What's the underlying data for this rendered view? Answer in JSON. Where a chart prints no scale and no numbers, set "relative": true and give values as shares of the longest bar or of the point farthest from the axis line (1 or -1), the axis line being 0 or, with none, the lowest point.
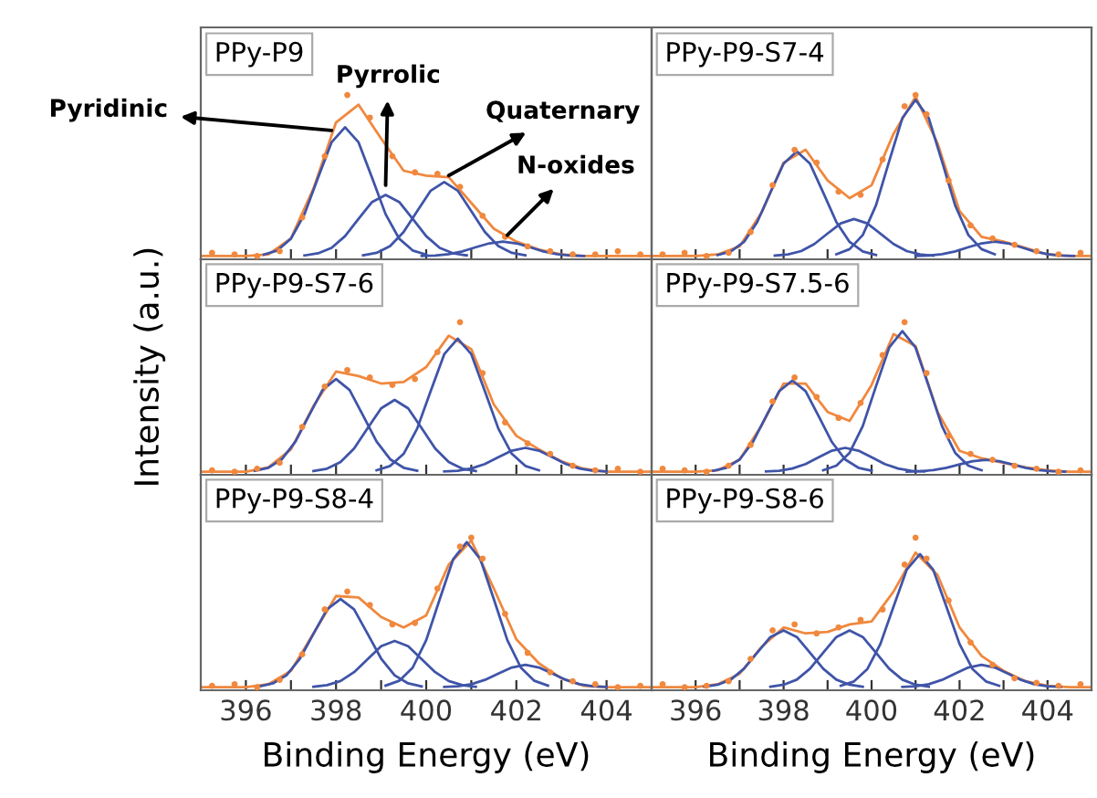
{
  "chart_data": [
    {
      "type": "line",
      "title": "PPy-P9",
      "relative": true,
      "xlim": [
        395,
        405
      ],
      "xticks": [
        396,
        {
          "value": 397,
          "label": null
        },
        398,
        {
          "value": 399,
          "label": null
        },
        400,
        {
          "value": 401,
          "label": null
        },
        402,
        {
          "value": 403,
          "label": null
        },
        404
      ],
      "tick_labels": false,
      "annotations": [
        {
          "text": "Pyridinic",
          "x": 397.9,
          "y": 0.78
        },
        {
          "text": "Pyrrolic",
          "x": 399.1,
          "y": 0.44
        },
        {
          "text": "Quaternary",
          "x": 400.5,
          "y": 0.5
        },
        {
          "text": "N-oxides",
          "x": 401.8,
          "y": 0.13
        }
      ],
      "series": [
        {
          "type": "scatter",
          "marker": "circle",
          "color": "#f0883e",
          "x": [
            395.25,
            395.75,
            396.25,
            396.75,
            397.25,
            397.75,
            398.25,
            398.75,
            399.25,
            399.75,
            400.25,
            400.75,
            401.25,
            401.75,
            402.25,
            402.75,
            403.25,
            403.75,
            404.25,
            404.75
          ],
          "values": [
            0.02,
            0.01,
            0.0,
            0.03,
            0.24,
            0.62,
            1.0,
            0.86,
            0.62,
            0.52,
            0.51,
            0.43,
            0.25,
            0.12,
            0.06,
            0.03,
            0.01,
            0.01,
            0.03,
            0.01
          ]
        },
        {
          "color": "#f0883e",
          "x": [
            395,
            395.5,
            396,
            396.5,
            397,
            397.5,
            398,
            398.5,
            399,
            399.5,
            400,
            400.5,
            401,
            401.5,
            402,
            402.5,
            403,
            403.5,
            404,
            404.5,
            405
          ],
          "values": [
            0,
            0,
            0,
            0.01,
            0.11,
            0.42,
            0.83,
            0.94,
            0.73,
            0.53,
            0.5,
            0.49,
            0.33,
            0.17,
            0.09,
            0.04,
            0.01,
            0,
            0,
            0,
            0
          ]
        },
        {
          "color": "#3f54a8",
          "x": [
            396.4,
            396.7,
            397.0,
            397.3,
            397.6,
            397.9,
            398.2,
            398.5,
            398.8,
            399.1,
            399.4,
            399.7,
            400.0
          ],
          "values": [
            0.009,
            0.035,
            0.108,
            0.26,
            0.486,
            0.706,
            0.8,
            0.706,
            0.486,
            0.26,
            0.108,
            0.035,
            0.009
          ]
        },
        {
          "color": "#3f54a8",
          "x": [
            397.3,
            397.6,
            397.9,
            398.2,
            398.5,
            398.8,
            399.1,
            399.4,
            399.7,
            400.0,
            400.3,
            400.6,
            400.9
          ],
          "values": [
            0.004,
            0.017,
            0.051,
            0.124,
            0.231,
            0.336,
            0.38,
            0.336,
            0.231,
            0.124,
            0.051,
            0.017,
            0.004
          ]
        },
        {
          "color": "#3f54a8",
          "x": [
            398.6,
            398.9,
            399.2,
            399.5,
            399.8,
            400.1,
            400.4,
            400.7,
            401.0,
            401.3,
            401.6,
            401.9,
            402.2
          ],
          "values": [
            0.005,
            0.02,
            0.062,
            0.15,
            0.279,
            0.406,
            0.46,
            0.406,
            0.279,
            0.15,
            0.062,
            0.02,
            0.005
          ]
        },
        {
          "color": "#3f54a8",
          "x": [
            399.9,
            400.2,
            400.5,
            400.8,
            401.1,
            401.4,
            401.7,
            402.0,
            402.3,
            402.6,
            402.9,
            403.2,
            403.5
          ],
          "values": [
            0.001,
            0.004,
            0.012,
            0.029,
            0.055,
            0.079,
            0.09,
            0.079,
            0.055,
            0.029,
            0.012,
            0.004,
            0.001
          ]
        }
      ]
    },
    {
      "type": "line",
      "title": "PPy-P9-S7-4",
      "relative": true,
      "xlim": [
        395,
        405
      ],
      "xticks": [
        396,
        {
          "value": 397,
          "label": null
        },
        398,
        {
          "value": 399,
          "label": null
        },
        400,
        {
          "value": 401,
          "label": null
        },
        402,
        {
          "value": 403,
          "label": null
        },
        404
      ],
      "tick_labels": false,
      "series": [
        {
          "type": "scatter",
          "marker": "circle",
          "color": "#f0883e",
          "x": [
            395.25,
            395.75,
            396.25,
            396.75,
            397.25,
            397.75,
            398.25,
            398.75,
            399.25,
            399.75,
            400.25,
            400.75,
            401.0,
            401.25,
            401.75,
            402.25,
            402.75,
            403.25,
            403.75,
            404.25,
            404.75
          ],
          "values": [
            0.01,
            0.02,
            0.0,
            0.02,
            0.15,
            0.44,
            0.66,
            0.58,
            0.4,
            0.38,
            0.6,
            0.93,
            1.0,
            0.88,
            0.47,
            0.19,
            0.11,
            0.07,
            0.03,
            0.01,
            0.02
          ]
        },
        {
          "color": "#f0883e",
          "x": [
            395,
            395.5,
            396,
            396.5,
            397,
            397.5,
            398,
            398.5,
            399,
            399.5,
            400,
            400.5,
            401,
            401.5,
            402,
            402.5,
            403,
            403.5,
            404,
            404.5,
            405
          ],
          "values": [
            0,
            0,
            0,
            0.01,
            0.06,
            0.27,
            0.58,
            0.66,
            0.47,
            0.36,
            0.44,
            0.76,
            0.99,
            0.7,
            0.28,
            0.12,
            0.09,
            0.05,
            0.01,
            0,
            0
          ]
        },
        {
          "color": "#3f54a8",
          "x": [
            396.5,
            396.8,
            397.1,
            397.4,
            397.7,
            398.0,
            398.3,
            398.6,
            398.9,
            399.2,
            399.5,
            399.8,
            400.1
          ],
          "values": [
            0.007,
            0.029,
            0.088,
            0.211,
            0.395,
            0.574,
            0.65,
            0.574,
            0.395,
            0.211,
            0.088,
            0.029,
            0.007
          ]
        },
        {
          "color": "#3f54a8",
          "x": [
            397.8,
            398.1,
            398.4,
            398.7,
            399.0,
            399.3,
            399.6,
            399.9,
            400.2,
            400.5,
            400.8,
            401.1,
            401.4
          ],
          "values": [
            0.003,
            0.01,
            0.031,
            0.075,
            0.14,
            0.203,
            0.23,
            0.203,
            0.14,
            0.075,
            0.031,
            0.01,
            0.003
          ]
        },
        {
          "color": "#3f54a8",
          "x": [
            399.2,
            399.5,
            399.8,
            400.1,
            400.4,
            400.7,
            401.0,
            401.3,
            401.6,
            401.9,
            402.2,
            402.5,
            402.8
          ],
          "values": [
            0.011,
            0.043,
            0.131,
            0.315,
            0.589,
            0.857,
            0.97,
            0.857,
            0.589,
            0.315,
            0.131,
            0.043,
            0.011
          ]
        },
        {
          "color": "#3f54a8",
          "x": [
            401.0,
            401.3,
            401.6,
            401.9,
            402.2,
            402.5,
            402.8,
            403.1,
            403.4,
            403.7,
            404.0,
            404.3,
            404.6
          ],
          "values": [
            0.001,
            0.004,
            0.012,
            0.029,
            0.055,
            0.079,
            0.09,
            0.079,
            0.055,
            0.029,
            0.012,
            0.004,
            0.001
          ]
        }
      ]
    },
    {
      "type": "line",
      "title": "PPy-P9-S7-6",
      "relative": true,
      "ylabel": "Intensity (a.u.)",
      "xlim": [
        395,
        405
      ],
      "xticks": [
        396,
        {
          "value": 397,
          "label": null
        },
        398,
        {
          "value": 399,
          "label": null
        },
        400,
        {
          "value": 401,
          "label": null
        },
        402,
        {
          "value": 403,
          "label": null
        },
        404
      ],
      "tick_labels": false,
      "series": [
        {
          "type": "scatter",
          "marker": "circle",
          "color": "#f0883e",
          "x": [
            395.25,
            395.75,
            396.25,
            396.75,
            397.25,
            397.75,
            398.25,
            398.75,
            399.25,
            399.75,
            400.25,
            400.75,
            401.25,
            401.75,
            402.25,
            402.75,
            403.25,
            403.75,
            404.25,
            404.75
          ],
          "values": [
            0.01,
            0.0,
            0.02,
            0.06,
            0.3,
            0.57,
            0.68,
            0.63,
            0.58,
            0.62,
            0.8,
            1.0,
            0.66,
            0.33,
            0.19,
            0.12,
            0.04,
            0.01,
            0.02,
            0.0
          ]
        },
        {
          "color": "#f0883e",
          "x": [
            395,
            395.5,
            396,
            396.5,
            397,
            397.5,
            398,
            398.5,
            399,
            399.5,
            400,
            400.5,
            401,
            401.5,
            402,
            402.5,
            403,
            403.5,
            404,
            404.5,
            405
          ],
          "values": [
            0,
            0,
            0,
            0.03,
            0.15,
            0.44,
            0.67,
            0.64,
            0.59,
            0.6,
            0.7,
            0.91,
            0.82,
            0.45,
            0.24,
            0.15,
            0.07,
            0.02,
            0,
            0,
            0
          ]
        },
        {
          "color": "#3f54a8",
          "x": [
            396.2,
            396.5,
            396.8,
            397.1,
            397.4,
            397.7,
            398.0,
            398.3,
            398.6,
            398.9,
            399.2,
            399.5,
            399.8
          ],
          "values": [
            0.007,
            0.027,
            0.084,
            0.202,
            0.376,
            0.547,
            0.62,
            0.547,
            0.376,
            0.202,
            0.084,
            0.027,
            0.007
          ]
        },
        {
          "color": "#3f54a8",
          "x": [
            397.5,
            397.8,
            398.1,
            398.4,
            398.7,
            399.0,
            399.3,
            399.6,
            399.9,
            400.2,
            400.5,
            400.8,
            401.1
          ],
          "values": [
            0.005,
            0.021,
            0.065,
            0.156,
            0.291,
            0.424,
            0.48,
            0.424,
            0.291,
            0.156,
            0.065,
            0.021,
            0.005
          ]
        },
        {
          "color": "#3f54a8",
          "x": [
            398.9,
            399.2,
            399.5,
            399.8,
            400.1,
            400.4,
            400.7,
            401.0,
            401.3,
            401.6,
            401.9,
            402.2,
            402.5
          ],
          "values": [
            0.01,
            0.039,
            0.12,
            0.289,
            0.54,
            0.786,
            0.89,
            0.786,
            0.54,
            0.289,
            0.12,
            0.039,
            0.01
          ]
        },
        {
          "color": "#3f54a8",
          "x": [
            400.4,
            400.7,
            401.0,
            401.3,
            401.6,
            401.9,
            402.2,
            402.5,
            402.8,
            403.1,
            403.4,
            403.7,
            404.0
          ],
          "values": [
            0.002,
            0.007,
            0.022,
            0.052,
            0.097,
            0.141,
            0.16,
            0.141,
            0.097,
            0.052,
            0.022,
            0.007,
            0.002
          ]
        }
      ]
    },
    {
      "type": "line",
      "title": "PPy-P9-S7.5-6",
      "relative": true,
      "xlim": [
        395,
        405
      ],
      "xticks": [
        396,
        {
          "value": 397,
          "label": null
        },
        398,
        {
          "value": 399,
          "label": null
        },
        400,
        {
          "value": 401,
          "label": null
        },
        402,
        {
          "value": 403,
          "label": null
        },
        404
      ],
      "tick_labels": false,
      "series": [
        {
          "type": "scatter",
          "marker": "circle",
          "color": "#f0883e",
          "x": [
            395.25,
            395.75,
            396.25,
            396.75,
            397.25,
            397.75,
            398.25,
            398.75,
            399.25,
            399.75,
            400.25,
            400.75,
            401.25,
            401.75,
            402.25,
            402.75,
            403.25,
            403.75,
            404.25,
            404.75
          ],
          "values": [
            0.02,
            0.01,
            0.0,
            0.04,
            0.18,
            0.47,
            0.63,
            0.5,
            0.36,
            0.46,
            0.78,
            1.0,
            0.66,
            0.24,
            0.12,
            0.08,
            0.04,
            0.02,
            0.0,
            0.01
          ]
        },
        {
          "color": "#f0883e",
          "x": [
            395,
            395.5,
            396,
            396.5,
            397,
            397.5,
            398,
            398.5,
            399,
            399.5,
            400,
            400.5,
            401,
            401.5,
            402,
            402.5,
            403,
            403.5,
            404,
            404.5,
            405
          ],
          "values": [
            0,
            0,
            0,
            0.01,
            0.08,
            0.31,
            0.59,
            0.59,
            0.4,
            0.34,
            0.58,
            0.92,
            0.84,
            0.4,
            0.14,
            0.09,
            0.06,
            0.03,
            0.01,
            0,
            0
          ]
        },
        {
          "color": "#3f54a8",
          "x": [
            396.4,
            396.7,
            397.0,
            397.3,
            397.6,
            397.9,
            398.2,
            398.5,
            398.8,
            399.1,
            399.4,
            399.7,
            400.0
          ],
          "values": [
            0.007,
            0.027,
            0.082,
            0.198,
            0.37,
            0.539,
            0.61,
            0.539,
            0.37,
            0.198,
            0.082,
            0.027,
            0.007
          ]
        },
        {
          "color": "#3f54a8",
          "x": [
            397.6,
            397.9,
            398.2,
            398.5,
            398.8,
            399.1,
            399.4,
            399.7,
            400.0,
            400.3,
            400.6,
            400.9,
            401.2
          ],
          "values": [
            0.002,
            0.007,
            0.022,
            0.052,
            0.097,
            0.141,
            0.16,
            0.141,
            0.097,
            0.052,
            0.022,
            0.007,
            0.002
          ]
        },
        {
          "color": "#3f54a8",
          "x": [
            398.9,
            399.2,
            399.5,
            399.8,
            400.1,
            400.4,
            400.7,
            401.0,
            401.3,
            401.6,
            401.9,
            402.2,
            402.5
          ],
          "values": [
            0.01,
            0.041,
            0.127,
            0.306,
            0.571,
            0.83,
            0.94,
            0.83,
            0.571,
            0.306,
            0.127,
            0.041,
            0.01
          ]
        },
        {
          "color": "#3f54a8",
          "x": [
            400.8,
            401.1,
            401.4,
            401.7,
            402.0,
            402.3,
            402.6,
            402.9,
            403.2,
            403.5,
            403.8,
            404.1,
            404.4
          ],
          "values": [
            0.001,
            0.004,
            0.011,
            0.026,
            0.049,
            0.071,
            0.08,
            0.071,
            0.049,
            0.026,
            0.011,
            0.004,
            0.001
          ]
        }
      ]
    },
    {
      "type": "line",
      "title": "PPy-P9-S8-4",
      "relative": true,
      "xlabel": "Binding Energy (eV)",
      "xlim": [
        395,
        405
      ],
      "xticks": [
        396,
        {
          "value": 397,
          "label": null
        },
        398,
        {
          "value": 399,
          "label": null
        },
        400,
        {
          "value": 401,
          "label": null
        },
        402,
        {
          "value": 403,
          "label": null
        },
        404
      ],
      "tick_labels": "x",
      "series": [
        {
          "type": "scatter",
          "marker": "circle",
          "color": "#f0883e",
          "x": [
            395.25,
            395.75,
            396.25,
            396.75,
            397.25,
            397.75,
            398.25,
            398.75,
            399.25,
            399.75,
            400.25,
            400.75,
            401.0,
            401.25,
            401.75,
            402.25,
            402.75,
            403.25,
            403.75,
            404.25,
            404.75
          ],
          "values": [
            0.01,
            0.02,
            0.0,
            0.05,
            0.22,
            0.52,
            0.64,
            0.55,
            0.42,
            0.43,
            0.66,
            0.94,
            1.0,
            0.86,
            0.49,
            0.23,
            0.1,
            0.04,
            0.02,
            0.0,
            0.01
          ]
        },
        {
          "color": "#f0883e",
          "x": [
            395,
            395.5,
            396,
            396.5,
            397,
            397.5,
            398,
            398.5,
            399,
            399.5,
            400,
            400.5,
            401,
            401.5,
            402,
            402.5,
            403,
            403.5,
            404,
            404.5,
            405
          ],
          "values": [
            0,
            0,
            0,
            0.02,
            0.11,
            0.36,
            0.61,
            0.6,
            0.47,
            0.4,
            0.48,
            0.82,
            0.98,
            0.66,
            0.32,
            0.16,
            0.06,
            0.01,
            0,
            0,
            0
          ]
        },
        {
          "color": "#3f54a8",
          "x": [
            396.3,
            396.6,
            396.9,
            397.2,
            397.5,
            397.8,
            398.1,
            398.4,
            398.7,
            399.0,
            399.3,
            399.6,
            399.9
          ],
          "values": [
            0.006,
            0.026,
            0.08,
            0.192,
            0.358,
            0.521,
            0.59,
            0.521,
            0.358,
            0.192,
            0.08,
            0.026,
            0.006
          ]
        },
        {
          "color": "#3f54a8",
          "x": [
            397.5,
            397.8,
            398.1,
            398.4,
            398.7,
            399.0,
            399.3,
            399.6,
            399.9,
            400.2,
            400.5,
            400.8,
            401.1
          ],
          "values": [
            0.003,
            0.014,
            0.042,
            0.101,
            0.188,
            0.274,
            0.31,
            0.274,
            0.188,
            0.101,
            0.042,
            0.014,
            0.003
          ]
        },
        {
          "color": "#3f54a8",
          "x": [
            399.1,
            399.4,
            399.7,
            400.0,
            400.3,
            400.6,
            400.9,
            401.2,
            401.5,
            401.8,
            402.1,
            402.4,
            402.7
          ],
          "values": [
            0.011,
            0.043,
            0.131,
            0.315,
            0.589,
            0.857,
            0.97,
            0.857,
            0.589,
            0.315,
            0.131,
            0.043,
            0.011
          ]
        },
        {
          "color": "#3f54a8",
          "x": [
            400.4,
            400.7,
            401.0,
            401.3,
            401.6,
            401.9,
            402.2,
            402.5,
            402.8,
            403.1,
            403.4,
            403.7,
            404.0
          ],
          "values": [
            0.002,
            0.007,
            0.02,
            0.049,
            0.091,
            0.132,
            0.15,
            0.132,
            0.091,
            0.049,
            0.02,
            0.007,
            0.002
          ]
        }
      ]
    },
    {
      "type": "line",
      "title": "PPy-P9-S8-6",
      "relative": true,
      "xlabel": "Binding Energy (eV)",
      "xlim": [
        395,
        405
      ],
      "xticks": [
        396,
        {
          "value": 397,
          "label": null
        },
        398,
        {
          "value": 399,
          "label": null
        },
        400,
        {
          "value": 401,
          "label": null
        },
        402,
        {
          "value": 403,
          "label": null
        },
        404
      ],
      "tick_labels": "x",
      "series": [
        {
          "type": "scatter",
          "marker": "circle",
          "color": "#f0883e",
          "x": [
            395.25,
            395.75,
            396.25,
            396.75,
            397.25,
            397.75,
            398.25,
            398.75,
            399.25,
            399.75,
            400.25,
            400.75,
            401.0,
            401.25,
            401.75,
            402.25,
            402.75,
            403.25,
            403.75,
            404.25,
            404.75
          ],
          "values": [
            0.02,
            0.0,
            0.01,
            0.04,
            0.19,
            0.38,
            0.42,
            0.36,
            0.4,
            0.45,
            0.52,
            0.82,
            1.0,
            0.86,
            0.58,
            0.3,
            0.15,
            0.06,
            0.03,
            0.01,
            0.02
          ]
        },
        {
          "color": "#f0883e",
          "x": [
            395,
            395.5,
            396,
            396.5,
            397,
            397.5,
            398,
            398.5,
            399,
            399.5,
            400,
            400.5,
            401,
            401.5,
            402,
            402.5,
            403,
            403.5,
            404,
            404.5,
            405
          ],
          "values": [
            0,
            0,
            0,
            0.02,
            0.09,
            0.27,
            0.4,
            0.36,
            0.37,
            0.42,
            0.44,
            0.64,
            0.9,
            0.75,
            0.4,
            0.21,
            0.11,
            0.04,
            0.01,
            0,
            0
          ]
        },
        {
          "color": "#3f54a8",
          "x": [
            396.2,
            396.5,
            396.8,
            397.1,
            397.4,
            397.7,
            398.0,
            398.3,
            398.6,
            398.9,
            399.2,
            399.5,
            399.8
          ],
          "values": [
            0.004,
            0.017,
            0.051,
            0.124,
            0.231,
            0.336,
            0.38,
            0.336,
            0.231,
            0.124,
            0.051,
            0.017,
            0.004
          ]
        },
        {
          "color": "#3f54a8",
          "x": [
            397.7,
            398.0,
            398.3,
            398.6,
            398.9,
            399.2,
            399.5,
            399.8,
            400.1,
            400.4,
            400.7,
            401.0,
            401.3
          ],
          "values": [
            0.004,
            0.017,
            0.051,
            0.124,
            0.231,
            0.336,
            0.38,
            0.336,
            0.231,
            0.124,
            0.051,
            0.017,
            0.004
          ]
        },
        {
          "color": "#3f54a8",
          "x": [
            399.3,
            399.6,
            399.9,
            400.2,
            400.5,
            400.8,
            401.1,
            401.4,
            401.7,
            402.0,
            402.3,
            402.6,
            402.9
          ],
          "values": [
            0.01,
            0.039,
            0.12,
            0.289,
            0.54,
            0.786,
            0.89,
            0.786,
            0.54,
            0.289,
            0.12,
            0.039,
            0.01
          ]
        },
        {
          "color": "#3f54a8",
          "x": [
            400.7,
            401.0,
            401.3,
            401.6,
            401.9,
            402.2,
            402.5,
            402.8,
            403.1,
            403.4,
            403.7,
            404.0,
            404.3
          ],
          "values": [
            0.002,
            0.007,
            0.02,
            0.049,
            0.091,
            0.132,
            0.15,
            0.132,
            0.091,
            0.049,
            0.02,
            0.007,
            0.002
          ]
        }
      ]
    }
  ]
}
